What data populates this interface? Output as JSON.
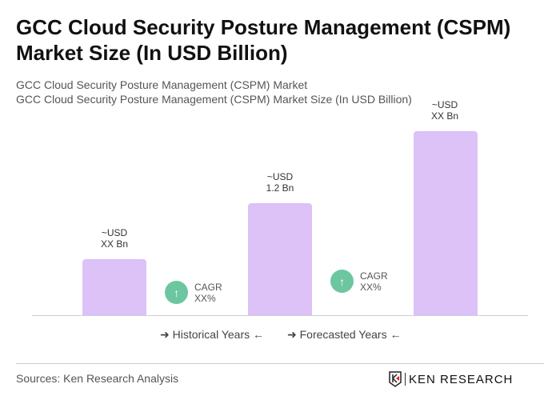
{
  "chart_data": {
    "type": "bar",
    "title": "GCC Cloud Security Posture Management (CSPM) Market Size (In USD Billion)",
    "subtitle": [
      "GCC Cloud Security Posture Management (CSPM) Market",
      "GCC Cloud Security Posture Management (CSPM) Market Size (In USD Billion)"
    ],
    "values": [
      null,
      1.2,
      null
    ],
    "data_labels": [
      [
        "~USD",
        "XX Bn"
      ],
      [
        "~USD",
        "1.2 Bn"
      ],
      [
        "~USD",
        "XX Bn"
      ]
    ],
    "bar_color": "#dcc2f7",
    "cagr": [
      {
        "label": "CAGR",
        "value": "XX%"
      },
      {
        "label": "CAGR",
        "value": "XX%"
      }
    ],
    "cagr_color": "#6cc6a0",
    "legend": [
      "Historical Years",
      "Forecasted Years"
    ]
  },
  "footer": {
    "sources": "Sources: Ken Research Analysis",
    "logo": "KEN RESEARCH"
  }
}
